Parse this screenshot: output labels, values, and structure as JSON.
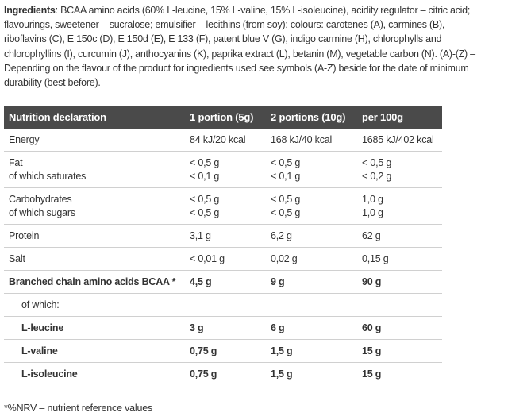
{
  "ingredients": {
    "label": "Ingredients",
    "lines": [
      ": BCAA amino acids (60% L-leucine, 15% L-valine, 15% L-isoleucine), acidity regulator – citric acid;",
      "flavourings, sweetener – sucralose; emulsifier – lecithins (from soy); colours: carotenes (A), carmines (B),",
      "riboflavins (C), E 150c (D), E 150d (E), E 133 (F), patent blue V (G), indigo carmine (H), chlorophylls and",
      "chlorophyllins (I), curcumin (J), anthocyanins (K), paprika extract (L), betanin (M), vegetable carbon (N). (A)-(Z) –",
      "Depending on the flavour of the product for ingredients used see symbols (A-Z) beside for the date of minimum",
      "durability (best before)."
    ]
  },
  "table": {
    "headers": [
      "Nutrition declaration",
      "1 portion (5g)",
      "2 portions (10g)",
      "per 100g"
    ],
    "rows": [
      {
        "label": "Energy",
        "v1": "84 kJ/20 kcal",
        "v2": "168 kJ/40 kcal",
        "v3": "1685 kJ/402 kcal"
      },
      {
        "label": "Fat",
        "sub": "of which saturates",
        "v1": "< 0,5 g",
        "v1s": "< 0,1 g",
        "v2": "< 0,5 g",
        "v2s": "< 0,1 g",
        "v3": "< 0,5 g",
        "v3s": "< 0,2 g"
      },
      {
        "label": "Carbohydrates",
        "sub": "of which sugars",
        "v1": "< 0,5 g",
        "v1s": "< 0,5 g",
        "v2": "< 0,5 g",
        "v2s": "< 0,5 g",
        "v3": "1,0 g",
        "v3s": "1,0 g"
      },
      {
        "label": "Protein",
        "v1": "3,1 g",
        "v2": "6,2 g",
        "v3": "62 g"
      },
      {
        "label": "Salt",
        "v1": "< 0,01 g",
        "v2": "0,02 g",
        "v3": "0,15 g"
      },
      {
        "label": "Branched chain amino acids BCAA *",
        "v1": "4,5 g",
        "v2": "9 g",
        "v3": "90 g"
      },
      {
        "label": "of which:"
      },
      {
        "label": "L-leucine",
        "v1": "3 g",
        "v2": "6 g",
        "v3": "60 g"
      },
      {
        "label": "L-valine",
        "v1": "0,75 g",
        "v2": "1,5 g",
        "v3": "15 g"
      },
      {
        "label": "L-isoleucine",
        "v1": "0,75 g",
        "v2": "1,5 g",
        "v3": "15 g"
      }
    ]
  },
  "footnote": "*%NRV – nutrient reference values",
  "colors": {
    "header_bg": "#4a4a4a",
    "header_text": "#ffffff",
    "text": "#333333",
    "divider": "#d0d0d0"
  }
}
